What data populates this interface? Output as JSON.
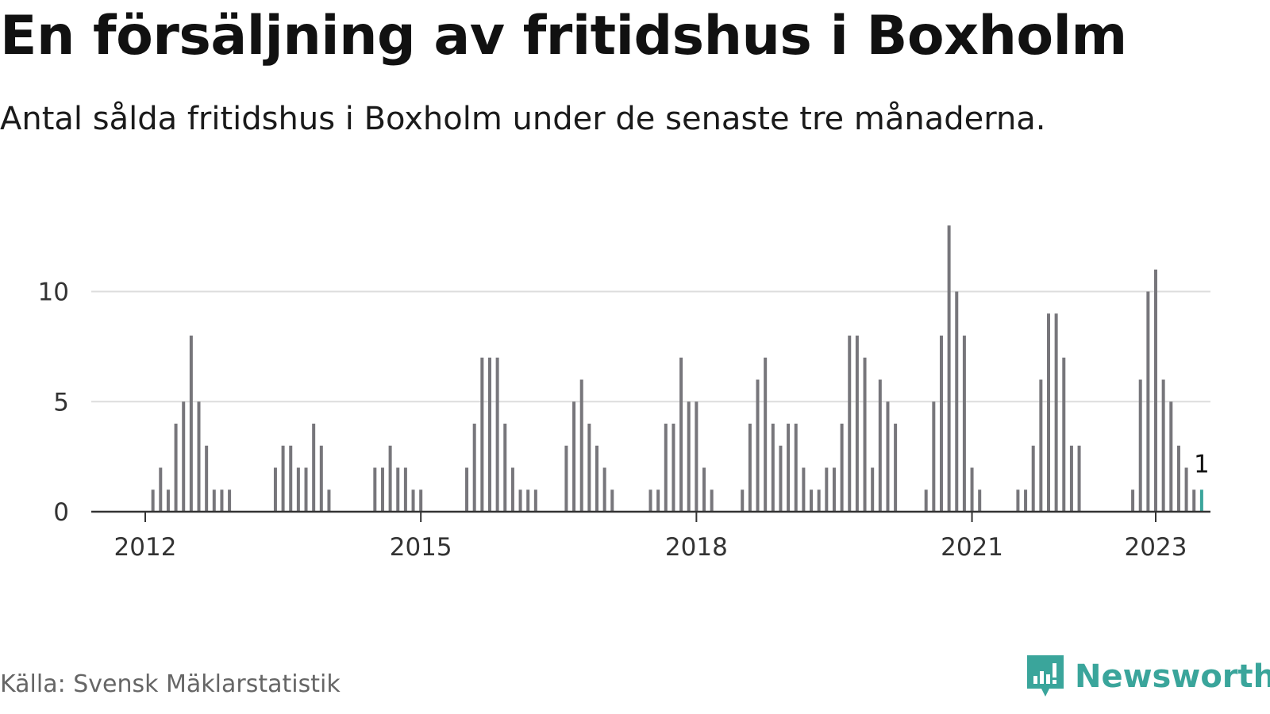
{
  "title": "En försäljning av fritidshus i Boxholm",
  "subtitle": "Antal sålda fritidshus i Boxholm under de senaste tre månaderna.",
  "source": "Källa: Svensk Mäklarstatistik",
  "brand": "Newsworthy",
  "colors": {
    "bar": "#77767b",
    "highlight": "#3aa59b",
    "grid": "#dddddd",
    "axis": "#333333",
    "brand": "#3aa59b"
  },
  "chart_data": {
    "type": "bar",
    "title": "En försäljning av fritidshus i Boxholm",
    "subtitle": "Antal sålda fritidshus i Boxholm under de senaste tre månaderna.",
    "xlabel": "",
    "ylabel": "",
    "ylim": [
      0,
      13
    ],
    "yticks": [
      0,
      5,
      10
    ],
    "xticks": [
      "2012",
      "2015",
      "2018",
      "2021",
      "2023"
    ],
    "grid": true,
    "legend": "none",
    "x_start": "2011-07",
    "values": [
      0,
      0,
      0,
      0,
      0,
      0,
      0,
      1,
      2,
      1,
      4,
      5,
      8,
      5,
      3,
      1,
      1,
      1,
      0,
      0,
      0,
      0,
      0,
      2,
      3,
      3,
      2,
      2,
      4,
      3,
      1,
      0,
      0,
      0,
      0,
      0,
      2,
      2,
      3,
      2,
      2,
      1,
      1,
      0,
      0,
      0,
      0,
      0,
      2,
      4,
      7,
      7,
      7,
      4,
      2,
      1,
      1,
      1,
      0,
      0,
      0,
      3,
      5,
      6,
      4,
      3,
      2,
      1,
      0,
      0,
      0,
      0,
      1,
      1,
      4,
      4,
      7,
      5,
      5,
      2,
      1,
      0,
      0,
      0,
      1,
      4,
      6,
      7,
      4,
      3,
      4,
      4,
      2,
      1,
      1,
      2,
      2,
      4,
      8,
      8,
      7,
      2,
      6,
      5,
      4,
      0,
      0,
      0,
      1,
      5,
      8,
      13,
      10,
      8,
      2,
      1,
      0,
      0,
      0,
      0,
      1,
      1,
      3,
      6,
      9,
      9,
      7,
      3,
      3,
      0,
      0,
      0,
      0,
      0,
      0,
      1,
      6,
      10,
      11,
      6,
      5,
      3,
      2,
      1,
      1
    ],
    "highlight_value": 1,
    "highlight_label": "1"
  }
}
